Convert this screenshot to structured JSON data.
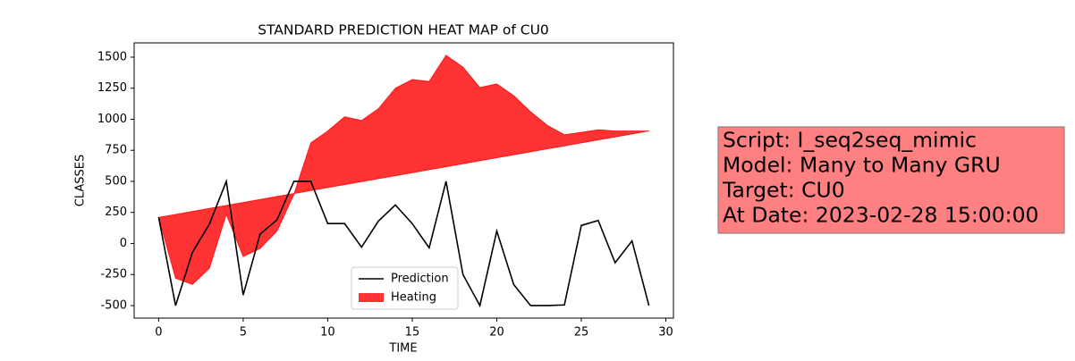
{
  "chart_data": {
    "type": "line",
    "title": "STANDARD PREDICTION HEAT MAP of CU0",
    "xlabel": "TIME",
    "ylabel": "CLASSES",
    "x": [
      0,
      1,
      2,
      3,
      4,
      5,
      6,
      7,
      8,
      9,
      10,
      11,
      12,
      13,
      14,
      15,
      16,
      17,
      18,
      19,
      20,
      21,
      22,
      23,
      24,
      25,
      26,
      27,
      28,
      29
    ],
    "series": [
      {
        "name": "Prediction",
        "color": "#000000",
        "values": [
          210,
          -500,
          -70,
          155,
          500,
          -415,
          75,
          190,
          500,
          500,
          160,
          160,
          -30,
          180,
          310,
          160,
          -35,
          500,
          -250,
          -500,
          100,
          -330,
          -500,
          -500,
          -495,
          145,
          185,
          -155,
          20,
          -500
        ]
      },
      {
        "name": "Heating",
        "color": "#ff0000",
        "opacity": 0.8,
        "fill_between": true,
        "values": [
          210,
          -280,
          -330,
          -200,
          235,
          -105,
          -40,
          100,
          395,
          810,
          905,
          1020,
          990,
          1085,
          1250,
          1320,
          1305,
          1515,
          1420,
          1255,
          1285,
          1190,
          1060,
          950,
          875,
          895,
          915,
          905,
          905,
          905
        ],
        "baseline": [
          210,
          234,
          258,
          282,
          306,
          330,
          354,
          378,
          402,
          426,
          450,
          474,
          498,
          522,
          546,
          570,
          594,
          618,
          642,
          666,
          690,
          714,
          738,
          762,
          786,
          810,
          834,
          858,
          882,
          906
        ]
      }
    ],
    "xlim": [
      -1.45,
      30.45
    ],
    "xticks": [
      0,
      5,
      10,
      15,
      20,
      25,
      30
    ],
    "ylim": [
      -601,
      1615
    ],
    "yticks": [
      -500,
      -250,
      0,
      250,
      500,
      750,
      1000,
      1250,
      1500
    ],
    "legend": "lower center",
    "annotation": {
      "lines": [
        "Script: I_seq2seq_mimic",
        "Model: Many to Many GRU",
        "Target: CU0",
        "At Date: 2023-02-28 15:00:00"
      ],
      "background": "#ff8080"
    }
  }
}
